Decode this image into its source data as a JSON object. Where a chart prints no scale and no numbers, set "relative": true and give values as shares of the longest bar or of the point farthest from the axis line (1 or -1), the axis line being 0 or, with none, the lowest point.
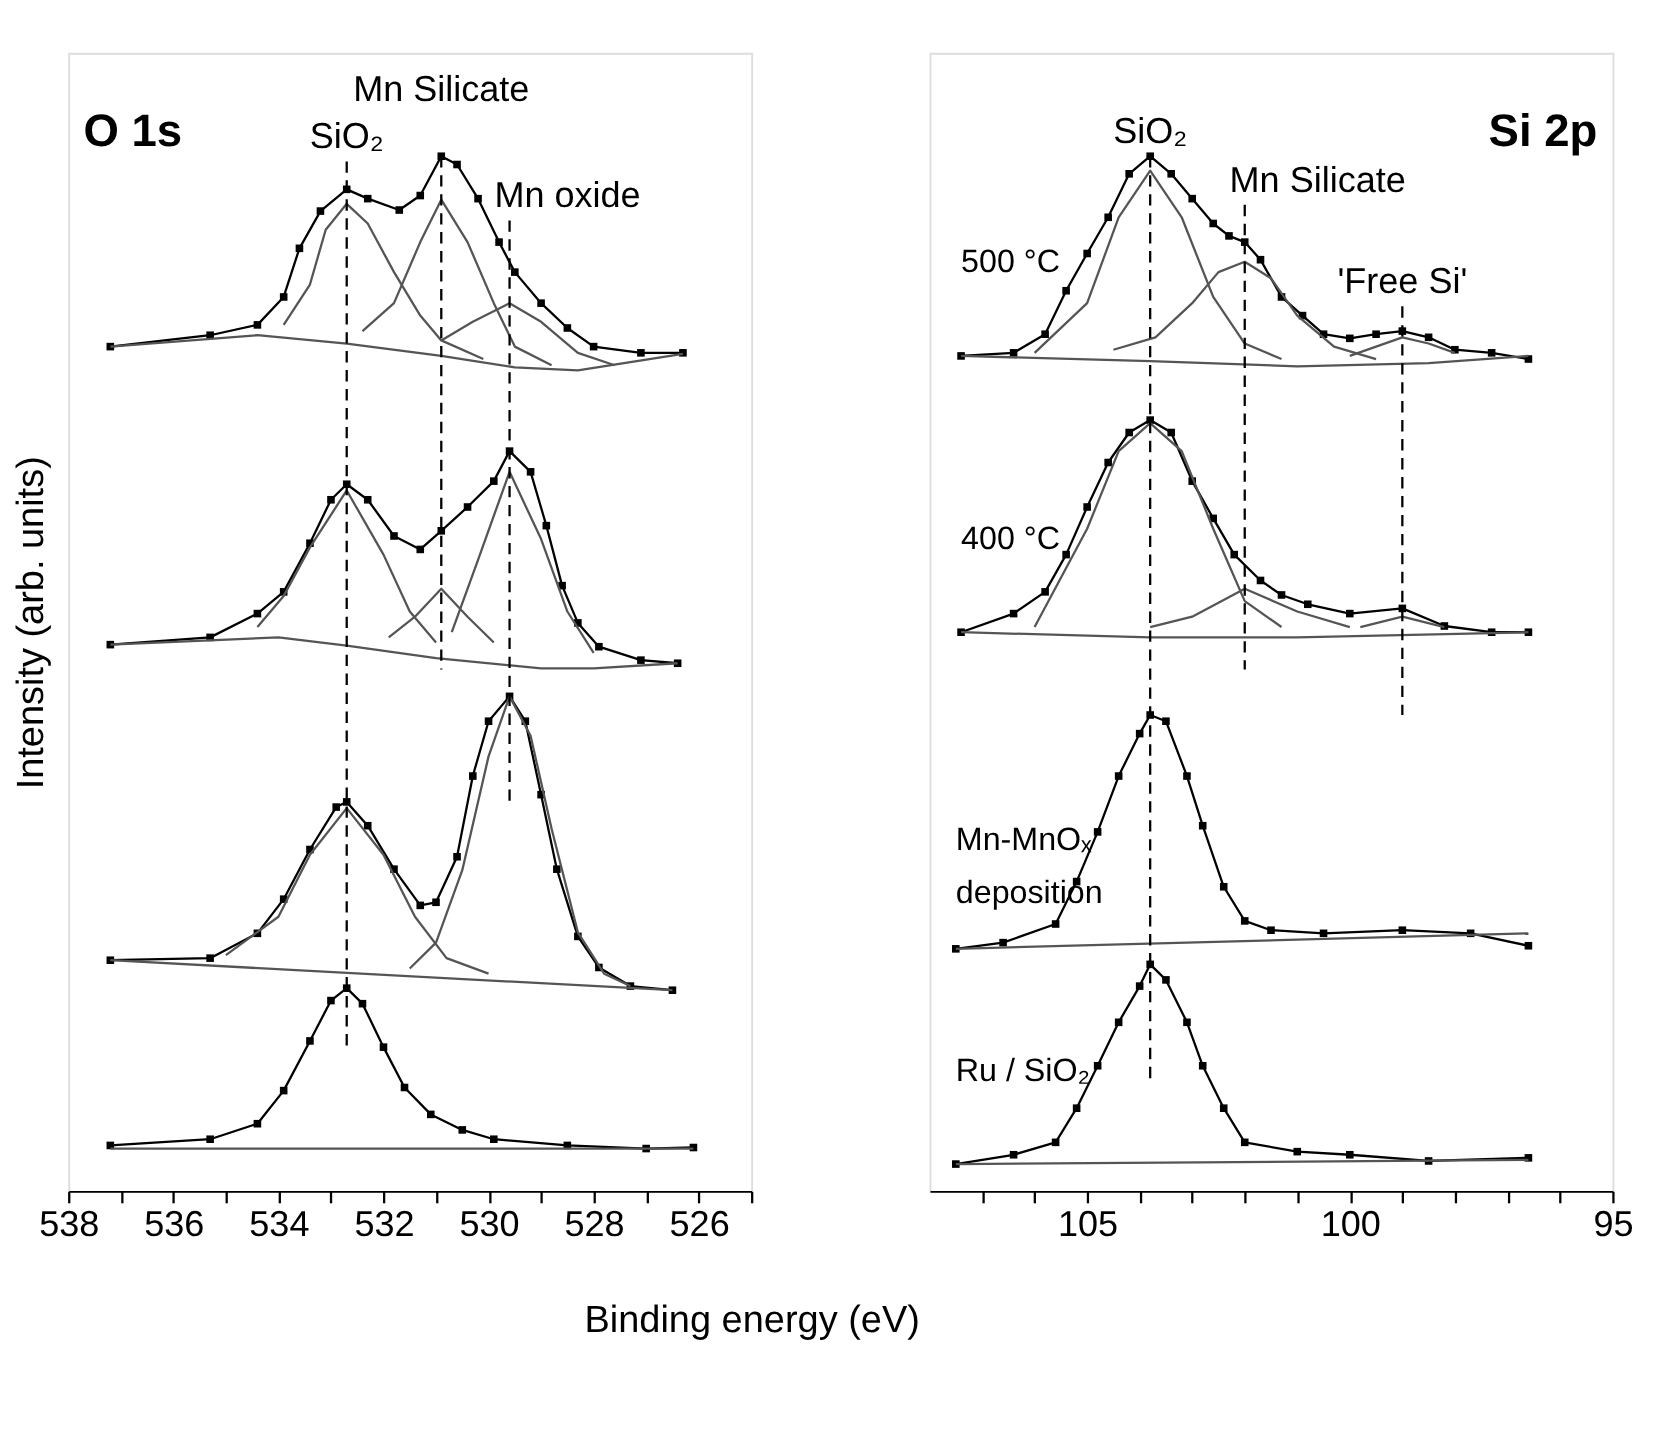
{
  "chart_data": [
    {
      "type": "line",
      "relative": true,
      "xlim": [
        538,
        525
      ],
      "xticks": [
        538,
        {
          "value": 537,
          "label": null
        },
        536,
        {
          "value": 535,
          "label": null
        },
        534,
        {
          "value": 533,
          "label": null
        },
        532,
        {
          "value": 531,
          "label": null
        },
        530,
        {
          "value": 529,
          "label": null
        },
        528,
        {
          "value": 527,
          "label": null
        },
        526,
        {
          "value": 525,
          "label": null
        }
      ],
      "xlabel": "Binding energy (eV)",
      "ylabel": "Intensity (arb. units)",
      "tick_labels": "x",
      "grid": false,
      "annotations": [
        "O 1s",
        {
          "text": "SiO₂",
          "x": 532.7,
          "y": 0.995
        },
        {
          "text": "Mn Silicate",
          "x": 530.9,
          "y": 1.0
        },
        {
          "text": "Mn oxide",
          "x": 529.6,
          "y": 0.938
        }
      ],
      "series": [
        {
          "color": "#000000",
          "marker": "square",
          "x": [
            537.2,
            535.3,
            534.4,
            533.9,
            533.6,
            533.2,
            532.7,
            532.3,
            531.7,
            531.3,
            530.9,
            530.6,
            530.2,
            529.8,
            529.5,
            529.0,
            528.5,
            528.0,
            527.1,
            526.3
          ],
          "values": [
            0.816,
            0.827,
            0.837,
            0.864,
            0.911,
            0.947,
            0.968,
            0.959,
            0.948,
            0.962,
            1.0,
            0.992,
            0.959,
            0.917,
            0.888,
            0.858,
            0.834,
            0.816,
            0.81,
            0.81
          ]
        },
        {
          "color": "#555555",
          "marker": "none",
          "x": [
            533.9,
            533.4,
            533.1,
            532.7,
            532.3,
            531.8,
            531.3,
            530.9,
            530.1
          ],
          "values": [
            0.837,
            0.876,
            0.929,
            0.954,
            0.935,
            0.888,
            0.846,
            0.822,
            0.804
          ]
        },
        {
          "color": "#555555",
          "marker": "none",
          "x": [
            532.4,
            531.8,
            531.3,
            530.9,
            530.4,
            529.9,
            529.5,
            528.8
          ],
          "values": [
            0.831,
            0.858,
            0.917,
            0.958,
            0.917,
            0.858,
            0.816,
            0.798
          ]
        },
        {
          "color": "#555555",
          "marker": "none",
          "x": [
            530.9,
            530.3,
            529.6,
            529.0,
            528.3,
            527.6
          ],
          "values": [
            0.822,
            0.84,
            0.858,
            0.84,
            0.81,
            0.798
          ]
        },
        {
          "color": "#555555",
          "marker": "none",
          "x": [
            537.2,
            534.4,
            532.7,
            530.9,
            529.5,
            528.3,
            526.3
          ],
          "values": [
            0.816,
            0.827,
            0.819,
            0.807,
            0.796,
            0.793,
            0.809
          ]
        },
        {
          "color": "#000000",
          "marker": "square",
          "x": [
            537.2,
            535.3,
            534.4,
            533.9,
            533.4,
            533.0,
            532.7,
            532.3,
            531.8,
            531.3,
            530.9,
            530.4,
            529.9,
            529.6,
            529.2,
            528.9,
            528.6,
            528.3,
            527.9,
            527.1,
            526.4
          ],
          "values": [
            0.528,
            0.535,
            0.558,
            0.579,
            0.626,
            0.668,
            0.683,
            0.668,
            0.633,
            0.62,
            0.638,
            0.661,
            0.686,
            0.715,
            0.695,
            0.643,
            0.585,
            0.549,
            0.526,
            0.513,
            0.51
          ]
        },
        {
          "color": "#555555",
          "marker": "none",
          "x": [
            534.4,
            533.9,
            533.4,
            532.7,
            532.0,
            531.5,
            531.0
          ],
          "values": [
            0.545,
            0.575,
            0.622,
            0.677,
            0.615,
            0.56,
            0.53
          ]
        },
        {
          "color": "#555555",
          "marker": "none",
          "x": [
            531.9,
            531.4,
            530.9,
            530.4,
            529.9
          ],
          "values": [
            0.535,
            0.555,
            0.582,
            0.555,
            0.53
          ]
        },
        {
          "color": "#555555",
          "marker": "none",
          "x": [
            530.7,
            530.2,
            529.6,
            529.0,
            528.5,
            528.0
          ],
          "values": [
            0.54,
            0.61,
            0.695,
            0.63,
            0.56,
            0.52
          ]
        },
        {
          "color": "#555555",
          "marker": "none",
          "x": [
            537.2,
            534.0,
            532.7,
            531.0,
            529.0,
            528.0,
            526.4
          ],
          "values": [
            0.528,
            0.535,
            0.527,
            0.515,
            0.505,
            0.505,
            0.51
          ]
        },
        {
          "color": "#000000",
          "marker": "square",
          "x": [
            537.2,
            535.3,
            534.4,
            533.9,
            533.4,
            532.9,
            532.7,
            532.3,
            531.8,
            531.3,
            531.0,
            530.6,
            530.3,
            530.0,
            529.6,
            529.3,
            529.0,
            528.7,
            528.3,
            527.9,
            527.3,
            526.5
          ],
          "values": [
            0.223,
            0.225,
            0.249,
            0.282,
            0.33,
            0.371,
            0.376,
            0.353,
            0.311,
            0.276,
            0.279,
            0.323,
            0.401,
            0.454,
            0.478,
            0.454,
            0.383,
            0.311,
            0.246,
            0.216,
            0.198,
            0.194
          ]
        },
        {
          "color": "#555555",
          "marker": "none",
          "x": [
            535.0,
            534.0,
            533.4,
            532.7,
            532.0,
            531.4,
            530.8,
            530.0
          ],
          "values": [
            0.228,
            0.265,
            0.325,
            0.37,
            0.325,
            0.265,
            0.225,
            0.21
          ]
        },
        {
          "color": "#555555",
          "marker": "none",
          "x": [
            531.5,
            531.0,
            530.5,
            530.0,
            529.6,
            529.2,
            528.8,
            528.3,
            527.8,
            527.3
          ],
          "values": [
            0.215,
            0.24,
            0.31,
            0.42,
            0.478,
            0.44,
            0.35,
            0.25,
            0.21,
            0.198
          ]
        },
        {
          "color": "#555555",
          "marker": "none",
          "x": [
            537.2,
            526.5
          ],
          "values": [
            0.223,
            0.194
          ]
        },
        {
          "color": "#000000",
          "marker": "square",
          "x": [
            537.2,
            535.3,
            534.4,
            533.9,
            533.4,
            533.0,
            532.7,
            532.4,
            532.0,
            531.6,
            531.1,
            530.5,
            529.9,
            528.5,
            527.0,
            526.1
          ],
          "values": [
            0.044,
            0.05,
            0.065,
            0.097,
            0.145,
            0.184,
            0.196,
            0.181,
            0.139,
            0.1,
            0.074,
            0.059,
            0.05,
            0.044,
            0.041,
            0.042
          ]
        },
        {
          "color": "#555555",
          "marker": "none",
          "x": [
            537.2,
            526.1
          ],
          "values": [
            0.041,
            0.041
          ]
        },
        {
          "color": "#000000",
          "marker": "none",
          "line_style": "dashed",
          "x": [
            532.7,
            532.7
          ],
          "values": [
            0.995,
            0.139
          ]
        },
        {
          "color": "#000000",
          "marker": "none",
          "line_style": "dashed",
          "x": [
            530.9,
            530.9
          ],
          "values": [
            1.0,
            0.504
          ]
        },
        {
          "color": "#000000",
          "marker": "none",
          "line_style": "dashed",
          "x": [
            529.6,
            529.6
          ],
          "values": [
            0.938,
            0.371
          ]
        }
      ]
    },
    {
      "type": "line",
      "relative": true,
      "xlim": [
        108,
        95
      ],
      "xticks": [
        {
          "value": 107,
          "label": null
        },
        {
          "value": 106,
          "label": null
        },
        105,
        {
          "value": 104,
          "label": null
        },
        {
          "value": 103,
          "label": null
        },
        {
          "value": 102,
          "label": null
        },
        {
          "value": 101,
          "label": null
        },
        100,
        {
          "value": 99,
          "label": null
        },
        {
          "value": 98,
          "label": null
        },
        {
          "value": 97,
          "label": null
        },
        {
          "value": 96,
          "label": null
        },
        95
      ],
      "tick_labels": "x",
      "grid": false,
      "annotations": [
        "Si 2p",
        {
          "text": "SiO₂",
          "x": 103.8,
          "y": 1.0
        },
        {
          "text": "Mn Silicate",
          "x": 102.0,
          "y": 0.953
        },
        {
          "text": "'Free Si'",
          "x": 99.0,
          "y": 0.855
        }
      ],
      "series": [
        {
          "name": "500 °C",
          "color": "#000000",
          "marker": "square",
          "x": [
            107.4,
            106.4,
            105.8,
            105.4,
            105.0,
            104.6,
            104.2,
            103.8,
            103.4,
            103.0,
            102.6,
            102.3,
            102.0,
            101.7,
            101.3,
            100.9,
            100.5,
            100.0,
            99.5,
            99.0,
            98.5,
            98.0,
            97.3,
            96.6
          ],
          "values": [
            0.807,
            0.81,
            0.828,
            0.87,
            0.906,
            0.941,
            0.983,
            1.0,
            0.983,
            0.959,
            0.935,
            0.923,
            0.917,
            0.9,
            0.864,
            0.846,
            0.828,
            0.824,
            0.828,
            0.831,
            0.825,
            0.813,
            0.81,
            0.804
          ]
        },
        {
          "color": "#555555",
          "marker": "none",
          "x": [
            106.0,
            105.0,
            104.4,
            103.8,
            103.2,
            102.6,
            102.0,
            101.3
          ],
          "values": [
            0.81,
            0.858,
            0.941,
            0.986,
            0.941,
            0.864,
            0.819,
            0.804
          ]
        },
        {
          "color": "#555555",
          "marker": "none",
          "x": [
            104.5,
            103.7,
            103.0,
            102.5,
            102.0,
            101.5,
            101.0,
            100.3,
            99.5
          ],
          "values": [
            0.813,
            0.825,
            0.858,
            0.888,
            0.898,
            0.882,
            0.846,
            0.816,
            0.804
          ]
        },
        {
          "color": "#555555",
          "marker": "none",
          "x": [
            100.0,
            99.5,
            99.0,
            98.5,
            98.0
          ],
          "values": [
            0.807,
            0.816,
            0.825,
            0.819,
            0.81
          ]
        },
        {
          "color": "#555555",
          "marker": "none",
          "x": [
            107.4,
            103.8,
            101.0,
            98.5,
            96.6
          ],
          "values": [
            0.807,
            0.802,
            0.797,
            0.8,
            0.807
          ]
        },
        {
          "name": "400 °C",
          "color": "#000000",
          "marker": "square",
          "x": [
            107.4,
            106.4,
            105.8,
            105.4,
            105.0,
            104.6,
            104.2,
            103.8,
            103.4,
            103.0,
            102.6,
            102.2,
            101.7,
            101.3,
            100.8,
            100.0,
            99.0,
            98.2,
            97.3,
            96.6
          ],
          "values": [
            0.54,
            0.558,
            0.579,
            0.615,
            0.661,
            0.704,
            0.733,
            0.745,
            0.733,
            0.686,
            0.65,
            0.615,
            0.59,
            0.576,
            0.567,
            0.558,
            0.563,
            0.546,
            0.54,
            0.54
          ]
        },
        {
          "color": "#555555",
          "marker": "none",
          "x": [
            106.0,
            105.0,
            104.4,
            103.8,
            103.2,
            102.6,
            102.0,
            101.3
          ],
          "values": [
            0.545,
            0.64,
            0.715,
            0.742,
            0.715,
            0.64,
            0.57,
            0.545
          ]
        },
        {
          "color": "#555555",
          "marker": "none",
          "x": [
            103.8,
            103.0,
            102.0,
            101.0,
            100.0
          ],
          "values": [
            0.545,
            0.555,
            0.582,
            0.56,
            0.545
          ]
        },
        {
          "color": "#555555",
          "marker": "none",
          "x": [
            99.8,
            99.0,
            98.2
          ],
          "values": [
            0.545,
            0.555,
            0.545
          ]
        },
        {
          "color": "#555555",
          "marker": "none",
          "x": [
            107.4,
            103.8,
            101.0,
            96.6
          ],
          "values": [
            0.54,
            0.535,
            0.535,
            0.54
          ]
        },
        {
          "name": "Mn-MnOₓ\ndeposition",
          "color": "#000000",
          "marker": "square",
          "x": [
            107.5,
            106.6,
            105.6,
            105.2,
            104.8,
            104.4,
            104.0,
            103.8,
            103.5,
            103.1,
            102.8,
            102.4,
            102.0,
            101.5,
            100.5,
            99.0,
            97.7,
            96.6
          ],
          "values": [
            0.234,
            0.24,
            0.258,
            0.299,
            0.347,
            0.401,
            0.442,
            0.46,
            0.454,
            0.401,
            0.353,
            0.294,
            0.261,
            0.252,
            0.249,
            0.252,
            0.249,
            0.237
          ]
        },
        {
          "color": "#555555",
          "marker": "none",
          "x": [
            107.5,
            96.6
          ],
          "values": [
            0.234,
            0.249
          ]
        },
        {
          "name": "Ru / SiO₂",
          "color": "#000000",
          "marker": "square",
          "x": [
            107.5,
            106.4,
            105.6,
            105.2,
            104.8,
            104.4,
            104.0,
            103.8,
            103.5,
            103.1,
            102.8,
            102.4,
            102.0,
            101.0,
            100.0,
            98.5,
            96.6
          ],
          "values": [
            0.026,
            0.035,
            0.047,
            0.08,
            0.121,
            0.163,
            0.198,
            0.219,
            0.204,
            0.163,
            0.121,
            0.08,
            0.047,
            0.038,
            0.035,
            0.029,
            0.032
          ]
        },
        {
          "color": "#555555",
          "marker": "none",
          "x": [
            107.5,
            96.6
          ],
          "values": [
            0.026,
            0.03
          ]
        },
        {
          "color": "#000000",
          "marker": "none",
          "line_style": "dashed",
          "x": [
            103.8,
            103.8
          ],
          "values": [
            1.0,
            0.109
          ]
        },
        {
          "color": "#000000",
          "marker": "none",
          "line_style": "dashed",
          "x": [
            102.0,
            102.0
          ],
          "values": [
            0.953,
            0.504
          ]
        },
        {
          "color": "#000000",
          "marker": "none",
          "line_style": "dashed",
          "x": [
            99.0,
            99.0
          ],
          "values": [
            0.855,
            0.46
          ]
        }
      ]
    }
  ]
}
